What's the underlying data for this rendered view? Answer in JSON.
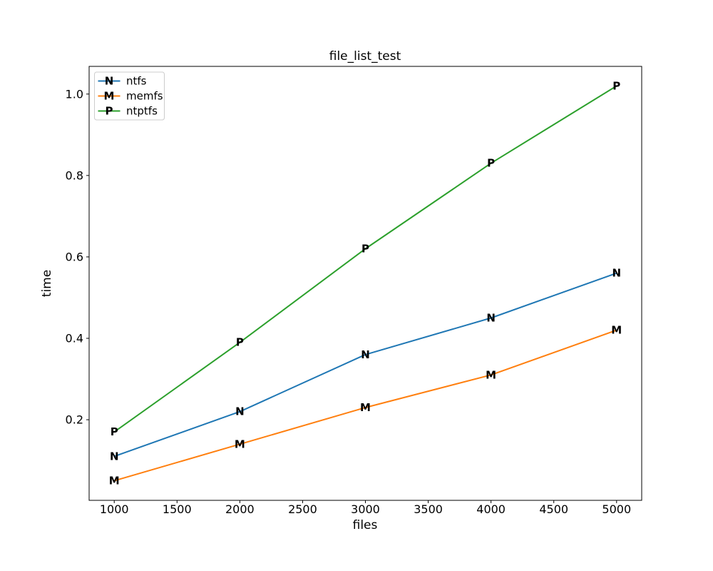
{
  "chart_data": {
    "type": "line",
    "title": "file_list_test",
    "xlabel": "files",
    "ylabel": "time",
    "x": [
      1000,
      2000,
      3000,
      4000,
      5000
    ],
    "series": [
      {
        "name": "ntfs",
        "color": "#1f77b4",
        "marker": "N",
        "values": [
          0.11,
          0.22,
          0.36,
          0.45,
          0.56
        ]
      },
      {
        "name": "memfs",
        "color": "#ff7f0e",
        "marker": "M",
        "values": [
          0.05,
          0.14,
          0.23,
          0.31,
          0.42
        ]
      },
      {
        "name": "ntptfs",
        "color": "#2ca02c",
        "marker": "P",
        "values": [
          0.17,
          0.39,
          0.62,
          0.83,
          1.02
        ]
      }
    ],
    "x_tick_values": [
      1000,
      1500,
      2000,
      2500,
      3000,
      3500,
      4000,
      4500,
      5000
    ],
    "x_tick_labels": [
      "1000",
      "1500",
      "2000",
      "2500",
      "3000",
      "3500",
      "4000",
      "4500",
      "5000"
    ],
    "y_tick_values": [
      0.2,
      0.4,
      0.6,
      0.8,
      1.0
    ],
    "y_tick_labels": [
      "0.2",
      "0.4",
      "0.6",
      "0.8",
      "1.0"
    ],
    "xlim": [
      800,
      5200
    ],
    "ylim": [
      0.002,
      1.068
    ],
    "grid": false,
    "legend": {
      "position": "upper left"
    },
    "background": "#ffffff",
    "text_color": "#000000",
    "spine_color": "#000000",
    "legend_border_color": "#cccccc"
  }
}
